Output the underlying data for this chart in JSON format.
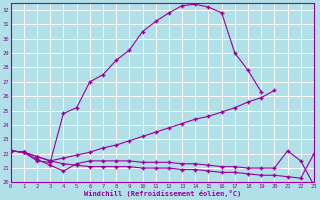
{
  "xlabel": "Windchill (Refroidissement éolien,°C)",
  "background_color": "#b2e0e8",
  "grid_color": "#ffffff",
  "line_color": "#990099",
  "x_min": 0,
  "x_max": 23,
  "y_min": 20,
  "y_max": 32.5,
  "ytick_max": 32,
  "series_data": {
    "line1_x": [
      0,
      1,
      2,
      3,
      4,
      5,
      6,
      7,
      8,
      9,
      10,
      11,
      12,
      13,
      14,
      15,
      16,
      17,
      18,
      19
    ],
    "line1_y": [
      22.2,
      22.1,
      21.5,
      21.4,
      24.8,
      25.2,
      27.0,
      27.5,
      28.5,
      29.2,
      30.5,
      31.2,
      31.8,
      32.3,
      32.4,
      32.2,
      31.8,
      29.0,
      27.8,
      26.3
    ],
    "line2_x": [
      0,
      1,
      2,
      3,
      4,
      5,
      6,
      7,
      8,
      9,
      10,
      11,
      12,
      13,
      14,
      15,
      16,
      17,
      18,
      19,
      20
    ],
    "line2_y": [
      22.2,
      22.1,
      21.8,
      21.5,
      21.7,
      21.9,
      22.1,
      22.4,
      22.6,
      22.9,
      23.2,
      23.5,
      23.8,
      24.1,
      24.4,
      24.6,
      24.9,
      25.2,
      25.6,
      25.9,
      26.4
    ],
    "line3_x": [
      0,
      1,
      2,
      3,
      4,
      5,
      6,
      7,
      8,
      9,
      10,
      11,
      12,
      13,
      14,
      15,
      16,
      17,
      18,
      19,
      20,
      21,
      22,
      23
    ],
    "line3_y": [
      22.2,
      22.1,
      21.8,
      21.5,
      21.3,
      21.2,
      21.1,
      21.1,
      21.1,
      21.1,
      21.0,
      21.0,
      21.0,
      20.9,
      20.9,
      20.8,
      20.7,
      20.7,
      20.6,
      20.5,
      20.5,
      20.4,
      20.3,
      22.0
    ],
    "line4_x": [
      0,
      1,
      2,
      3,
      4,
      5,
      6,
      7,
      8,
      9,
      10,
      11,
      12,
      13,
      14,
      15,
      16,
      17,
      18,
      19,
      20,
      21,
      22,
      23
    ],
    "line4_y": [
      22.2,
      22.1,
      21.6,
      21.2,
      20.8,
      21.3,
      21.5,
      21.5,
      21.5,
      21.5,
      21.4,
      21.4,
      21.4,
      21.3,
      21.3,
      21.2,
      21.1,
      21.1,
      21.0,
      21.0,
      21.0,
      22.2,
      21.5,
      19.8
    ]
  }
}
